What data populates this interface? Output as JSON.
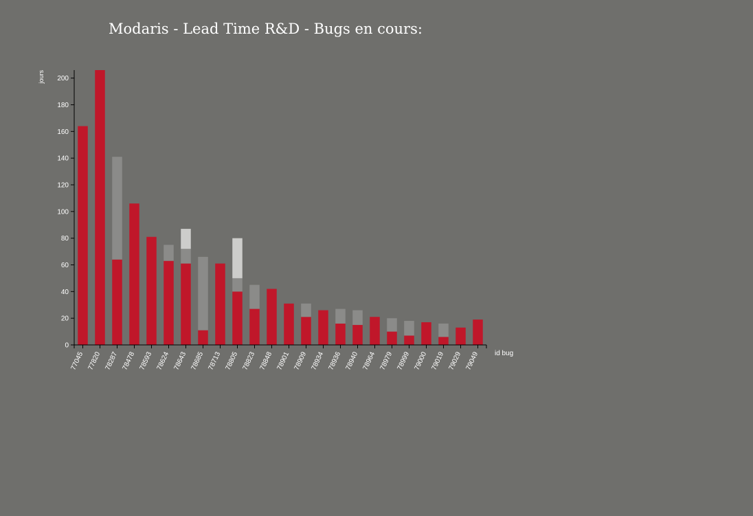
{
  "chart_data": {
    "type": "bar",
    "stacked": true,
    "title": "Modaris - Lead Time R&D - Bugs en cours:",
    "xlabel": "id bug",
    "ylabel": "jours",
    "ylim": [
      0,
      206
    ],
    "yticks": [
      0,
      20,
      40,
      60,
      80,
      100,
      120,
      140,
      160,
      180,
      200
    ],
    "grid": false,
    "categories": [
      "77045",
      "77820",
      "78287",
      "78478",
      "78593",
      "78624",
      "78643",
      "78685",
      "78713",
      "78805",
      "78823",
      "78848",
      "78901",
      "78909",
      "78934",
      "78936",
      "78940",
      "78964",
      "78979",
      "78999",
      "79000",
      "79019",
      "79029",
      "79049"
    ],
    "series": [
      {
        "color": "#c0172a",
        "values": [
          164,
          206,
          64,
          106,
          81,
          63,
          61,
          11,
          61,
          40,
          27,
          42,
          31,
          21,
          26,
          16,
          15,
          21,
          10,
          7,
          17,
          6,
          13,
          19
        ]
      },
      {
        "color": "#8b8b89",
        "values": [
          0,
          0,
          77,
          0,
          0,
          12,
          11,
          55,
          0,
          10,
          18,
          0,
          0,
          10,
          0,
          11,
          11,
          0,
          10,
          11,
          0,
          10,
          0,
          0
        ]
      },
      {
        "color": "#cdcdcb",
        "values": [
          0,
          0,
          0,
          0,
          0,
          0,
          15,
          0,
          0,
          30,
          0,
          0,
          0,
          0,
          0,
          0,
          0,
          0,
          0,
          0,
          0,
          0,
          0,
          0
        ]
      }
    ]
  }
}
